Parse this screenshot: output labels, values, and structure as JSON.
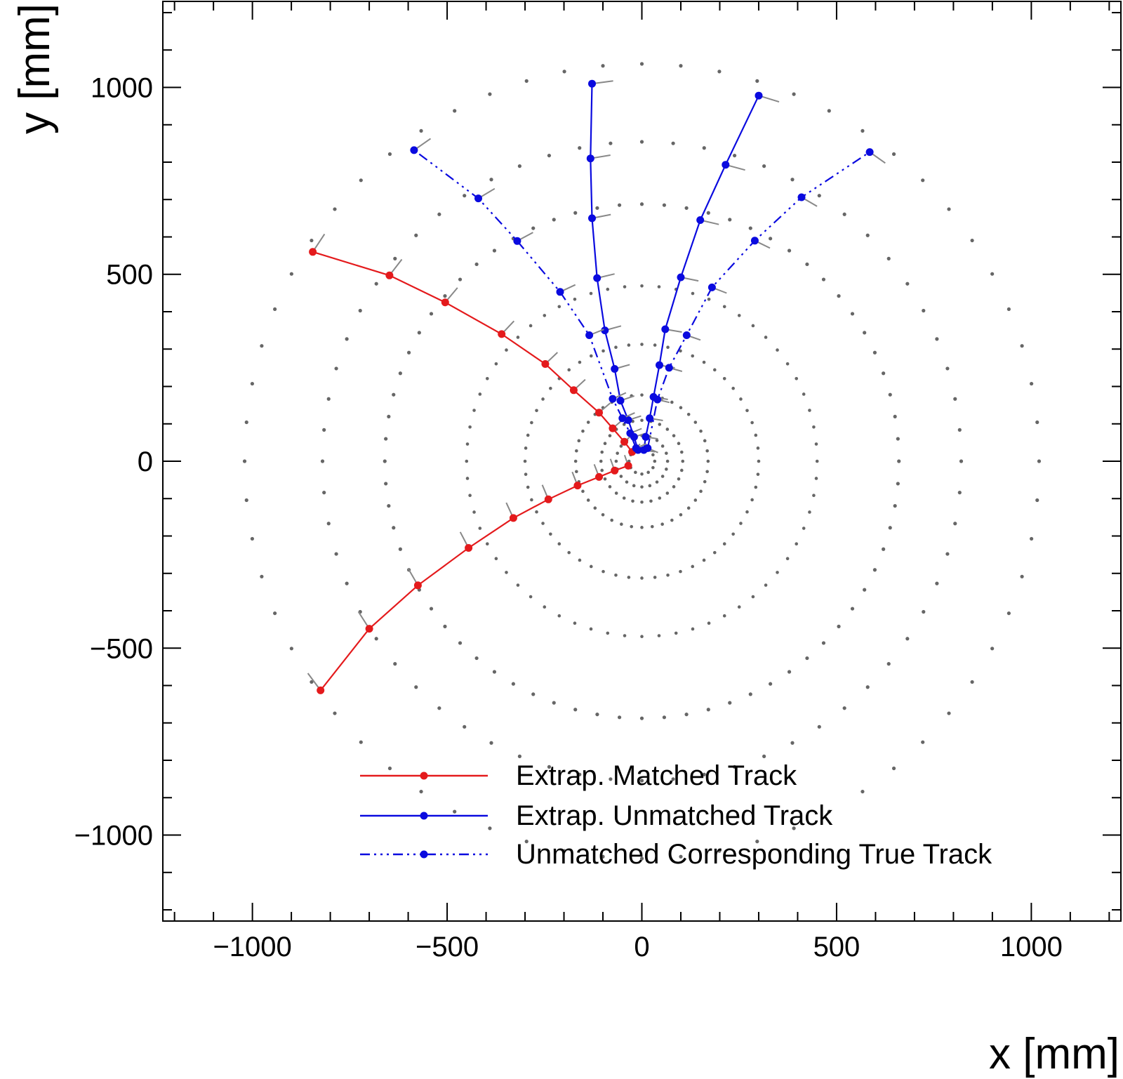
{
  "chart_data": {
    "type": "scatter",
    "xlabel": "x [mm]",
    "ylabel": "y [mm]",
    "xlim": [
      -1230,
      1230
    ],
    "ylim": [
      -1230,
      1230
    ],
    "x_ticks": [
      -1000,
      -500,
      0,
      500,
      1000
    ],
    "y_ticks": [
      -1000,
      -500,
      0,
      500,
      1000
    ],
    "x_tick_labels": [
      "−1000",
      "−500",
      "0",
      "500",
      "1000"
    ],
    "y_tick_labels": [
      "−1000",
      "−500",
      "0",
      "500",
      "1000"
    ],
    "minor_tick_step": 100,
    "legend_position": "bottom-right",
    "detector_layers": {
      "description_radii_mm": [
        33,
        66,
        105,
        170,
        300,
        450,
        660,
        820,
        1020
      ],
      "dot_counts": [
        12,
        20,
        28,
        40,
        56,
        64,
        72,
        64,
        64
      ]
    },
    "series": [
      {
        "name": "Extrap. Matched Track",
        "color": "#e41a1c",
        "style": "solid",
        "tracks": [
          {
            "x": [
              -25,
              -45,
              -75,
              -110,
              -175,
              -248,
              -360,
              -505,
              -648,
              -845
            ],
            "y": [
              25,
              52,
              88,
              130,
              190,
              260,
              340,
              425,
              497,
              560
            ]
          },
          {
            "x": [
              -35,
              -70,
              -110,
              -165,
              -240,
              -330,
              -445,
              -575,
              -700,
              -825
            ],
            "y": [
              -12,
              -25,
              -42,
              -65,
              -102,
              -152,
              -232,
              -332,
              -448,
              -613
            ]
          }
        ]
      },
      {
        "name": "Extrap. Unmatched Track",
        "color": "#0a0adf",
        "style": "solid",
        "tracks": [
          {
            "x": [
              -10,
              -20,
              -35,
              -55,
              -70,
              -95,
              -115,
              -128,
              -132,
              -128
            ],
            "y": [
              30,
              65,
              110,
              162,
              247,
              350,
              490,
              650,
              810,
              1010
            ]
          },
          {
            "x": [
              5,
              10,
              20,
              30,
              45,
              60,
              100,
              150,
              215,
              300
            ],
            "y": [
              30,
              65,
              115,
              172,
              257,
              353,
              492,
              645,
              793,
              978
            ]
          }
        ]
      },
      {
        "name": "Unmatched Corresponding True Track",
        "color": "#0a0adf",
        "style": "dash-dot",
        "tracks": [
          {
            "x": [
              -15,
              -30,
              -50,
              -75,
              -135,
              -210,
              -320,
              -420,
              -585
            ],
            "y": [
              35,
              75,
              115,
              167,
              337,
              453,
              589,
              703,
              832
            ]
          },
          {
            "x": [
              15,
              40,
              70,
              115,
              180,
              290,
              410,
              585
            ],
            "y": [
              35,
              165,
              250,
              337,
              465,
              590,
              706,
              827
            ]
          }
        ]
      }
    ]
  }
}
